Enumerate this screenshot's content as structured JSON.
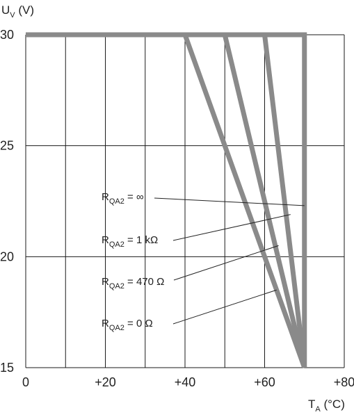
{
  "chart_data": {
    "type": "line",
    "ylabel": {
      "main": "U",
      "sub": "V",
      "unit": " (V)"
    },
    "xlabel": {
      "main": "T",
      "sub": "A",
      "unit": " (°C)"
    },
    "xlim": [
      0,
      80
    ],
    "ylim": [
      15,
      30
    ],
    "grid": true,
    "x_gridlines": [
      0,
      10,
      20,
      30,
      40,
      50,
      60,
      70,
      80
    ],
    "y_gridlines": [
      15,
      20,
      25,
      30
    ],
    "x_ticks": [
      {
        "value": 0,
        "label": "0"
      },
      {
        "value": 20,
        "label": "+20"
      },
      {
        "value": 40,
        "label": "+40"
      },
      {
        "value": 60,
        "label": "+60"
      },
      {
        "value": 80,
        "label": "+80"
      }
    ],
    "y_ticks": [
      {
        "value": 15,
        "label": "15"
      },
      {
        "value": 20,
        "label": "20"
      },
      {
        "value": 25,
        "label": "25"
      },
      {
        "value": 30,
        "label": "30"
      }
    ],
    "line_color": "#8a8a8a",
    "grid_color": "#1a1a1a",
    "series": [
      {
        "name": {
          "main": "R",
          "sub": "QA2",
          "rest": " = ∞"
        },
        "points": [
          [
            0,
            30
          ],
          [
            70,
            30
          ],
          [
            70,
            15
          ]
        ],
        "pointer": [
          70,
          22.3
        ]
      },
      {
        "name": {
          "main": "R",
          "sub": "QA2",
          "rest": " = 1 kΩ"
        },
        "points": [
          [
            0,
            30
          ],
          [
            60,
            30
          ],
          [
            70,
            15
          ]
        ],
        "pointer": [
          66.5,
          21.9
        ]
      },
      {
        "name": {
          "main": "R",
          "sub": "QA2",
          "rest": " = 470 Ω"
        },
        "points": [
          [
            0,
            30
          ],
          [
            50,
            30
          ],
          [
            70,
            15
          ]
        ],
        "pointer": [
          63.5,
          20.5
        ]
      },
      {
        "name": {
          "main": "R",
          "sub": "QA2",
          "rest": " = 0 Ω"
        },
        "points": [
          [
            0,
            30
          ],
          [
            40,
            30
          ],
          [
            70,
            15
          ]
        ],
        "pointer": [
          63,
          18.5
        ]
      }
    ]
  }
}
